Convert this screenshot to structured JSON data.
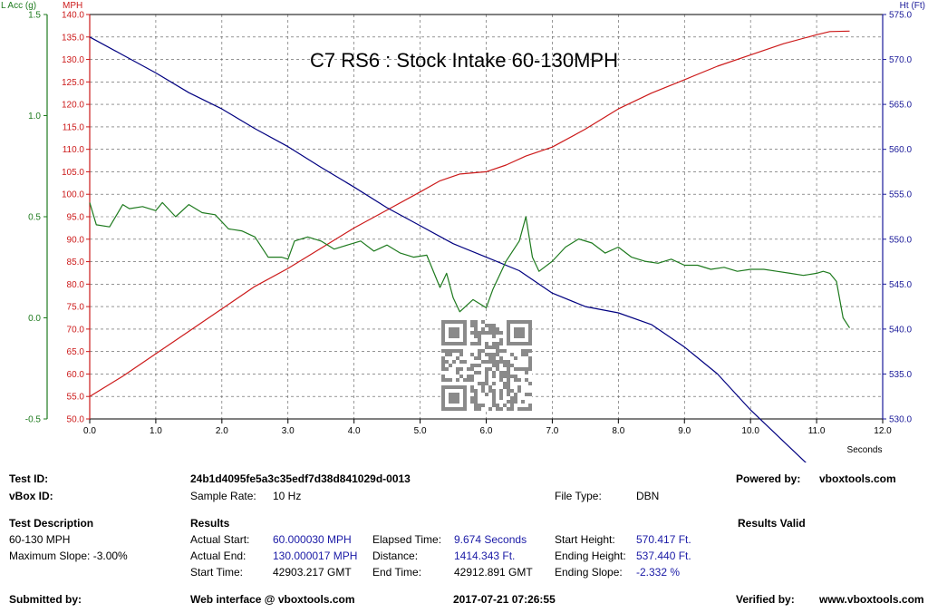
{
  "chart_data": {
    "type": "line",
    "title": "C7 RS6 : Stock Intake 60-130MPH",
    "xlabel": "Seconds",
    "xlim": [
      0,
      12
    ],
    "x_ticks": [
      "0.0",
      "1.0",
      "2.0",
      "3.0",
      "4.0",
      "5.0",
      "6.0",
      "7.0",
      "8.0",
      "9.0",
      "10.0",
      "11.0",
      "12.0"
    ],
    "axes": {
      "lacc": {
        "label": "L Acc (g)",
        "range": [
          -0.5,
          1.5
        ],
        "ticks": [
          "-0.5",
          "0.0",
          "0.5",
          "1.0",
          "1.5"
        ],
        "color": "#1e7a1e"
      },
      "mph": {
        "label": "MPH",
        "range": [
          50,
          140
        ],
        "ticks": [
          "50.0",
          "55.0",
          "60.0",
          "65.0",
          "70.0",
          "75.0",
          "80.0",
          "85.0",
          "90.0",
          "95.0",
          "100.0",
          "105.0",
          "110.0",
          "115.0",
          "120.0",
          "125.0",
          "130.0",
          "135.0",
          "140.0"
        ],
        "color": "#cc1a1a"
      },
      "ht": {
        "label": "Ht (Ft)",
        "range": [
          530,
          575
        ],
        "ticks": [
          "530.0",
          "535.0",
          "540.0",
          "545.0",
          "550.0",
          "555.0",
          "560.0",
          "565.0",
          "570.0",
          "575.0"
        ],
        "color": "#1a1a99"
      }
    },
    "grid": true,
    "series": [
      {
        "axis": "mph",
        "color": "#cc1a1a",
        "x": [
          0.0,
          0.5,
          1.0,
          1.5,
          2.0,
          2.5,
          3.0,
          3.5,
          4.0,
          4.5,
          5.0,
          5.3,
          5.6,
          6.0,
          6.3,
          6.6,
          7.0,
          7.5,
          8.0,
          8.5,
          9.0,
          9.5,
          10.0,
          10.5,
          11.0,
          11.2,
          11.5
        ],
        "y": [
          55.0,
          59.5,
          64.5,
          69.5,
          74.5,
          79.5,
          83.5,
          88.0,
          92.5,
          96.5,
          100.5,
          103.0,
          104.5,
          105.0,
          106.5,
          108.5,
          110.5,
          114.5,
          119.0,
          122.5,
          125.5,
          128.5,
          131.0,
          133.5,
          135.5,
          136.2,
          136.3
        ]
      },
      {
        "axis": "ht",
        "color": "#000080",
        "x": [
          0.0,
          0.5,
          1.0,
          1.5,
          2.0,
          2.5,
          3.0,
          3.5,
          4.0,
          4.5,
          5.0,
          5.5,
          6.0,
          6.5,
          7.0,
          7.5,
          8.0,
          8.5,
          9.0,
          9.5,
          10.0,
          10.5,
          11.0,
          11.5
        ],
        "y": [
          572.5,
          570.5,
          568.5,
          566.3,
          564.5,
          562.3,
          560.3,
          558.0,
          555.8,
          553.5,
          551.5,
          549.5,
          548.0,
          546.5,
          544.0,
          542.5,
          541.8,
          540.5,
          538.0,
          535.0,
          531.0,
          527.5,
          524.0,
          521.5
        ]
      },
      {
        "axis": "lacc",
        "color": "#1e7a1e",
        "x": [
          0.0,
          0.1,
          0.3,
          0.5,
          0.6,
          0.8,
          1.0,
          1.1,
          1.3,
          1.5,
          1.7,
          1.9,
          2.1,
          2.3,
          2.5,
          2.7,
          2.9,
          3.0,
          3.1,
          3.3,
          3.5,
          3.7,
          3.9,
          4.1,
          4.3,
          4.5,
          4.7,
          4.9,
          5.1,
          5.3,
          5.4,
          5.5,
          5.6,
          5.8,
          6.0,
          6.1,
          6.3,
          6.5,
          6.6,
          6.7,
          6.8,
          7.0,
          7.2,
          7.4,
          7.6,
          7.8,
          8.0,
          8.2,
          8.4,
          8.6,
          8.8,
          9.0,
          9.2,
          9.4,
          9.6,
          9.8,
          10.0,
          10.2,
          10.4,
          10.6,
          10.8,
          11.0,
          11.1,
          11.2,
          11.3,
          11.4,
          11.5
        ],
        "y": [
          0.57,
          0.46,
          0.45,
          0.56,
          0.54,
          0.55,
          0.53,
          0.57,
          0.5,
          0.56,
          0.52,
          0.51,
          0.44,
          0.43,
          0.4,
          0.3,
          0.3,
          0.29,
          0.38,
          0.4,
          0.38,
          0.34,
          0.36,
          0.38,
          0.33,
          0.36,
          0.32,
          0.3,
          0.31,
          0.15,
          0.22,
          0.1,
          0.03,
          0.09,
          0.05,
          0.14,
          0.28,
          0.38,
          0.5,
          0.3,
          0.23,
          0.28,
          0.35,
          0.39,
          0.37,
          0.32,
          0.35,
          0.3,
          0.28,
          0.27,
          0.29,
          0.26,
          0.26,
          0.24,
          0.25,
          0.23,
          0.24,
          0.24,
          0.23,
          0.22,
          0.21,
          0.22,
          0.23,
          0.22,
          0.18,
          0.0,
          -0.05
        ]
      }
    ]
  },
  "info": {
    "test_id_label": "Test ID:",
    "test_id_value": "24b1d4095fe5a3c35edf7d38d841029d-0013",
    "vbox_id_label": "vBox ID:",
    "sample_rate_label": "Sample Rate:",
    "sample_rate_value": "10 Hz",
    "file_type_label": "File Type:",
    "file_type_value": "DBN",
    "powered_by_label": "Powered by:",
    "powered_by_value": "vboxtools.com",
    "test_desc_label": "Test Description",
    "test_desc_value": "60-130 MPH",
    "max_slope": "Maximum Slope:  -3.00%",
    "results_label": "Results",
    "results_valid": "Results Valid",
    "actual_start_label": "Actual Start:",
    "actual_start_value": "60.000030 MPH",
    "actual_end_label": "Actual End:",
    "actual_end_value": "130.000017 MPH",
    "start_time_label": "Start Time:",
    "start_time_value": "42903.217 GMT",
    "elapsed_label": "Elapsed Time:",
    "elapsed_value": "9.674 Seconds",
    "distance_label": "Distance:",
    "distance_value": "1414.343 Ft.",
    "end_time_label": "End Time:",
    "end_time_value": "42912.891 GMT",
    "start_height_label": "Start Height:",
    "start_height_value": "570.417 Ft.",
    "ending_height_label": "Ending Height:",
    "ending_height_value": "537.440 Ft.",
    "ending_slope_label": "Ending Slope:",
    "ending_slope_value": "-2.332 %",
    "submitted_label": "Submitted by:",
    "web_interface": "Web interface @ vboxtools.com",
    "date_value": "2017-07-21 07:26:55",
    "verified_label": "Verified by:",
    "verified_value": "www.vboxtools.com"
  }
}
